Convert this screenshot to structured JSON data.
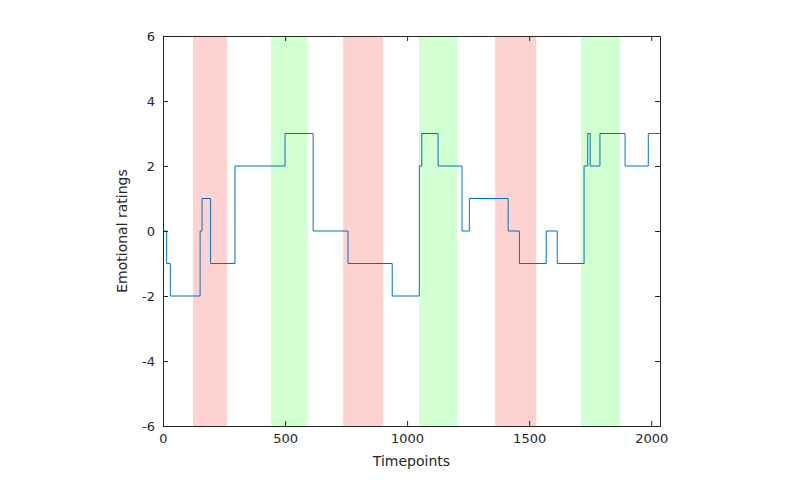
{
  "chart_data": {
    "type": "line",
    "line_style": "step",
    "color": "#0072bd",
    "x_label": "Timepoints",
    "y_label": "Emotional ratings",
    "x": [
      0,
      15,
      30,
      152,
      160,
      195,
      295,
      500,
      615,
      758,
      939,
      1050,
      1060,
      1127,
      1225,
      1255,
      1414,
      1460,
      1570,
      1615,
      1725,
      1740,
      1750,
      1790,
      1893,
      1988,
      2036
    ],
    "values": [
      0,
      -1,
      -2,
      0,
      1,
      -1,
      2,
      3,
      0,
      -1,
      -2,
      2,
      3,
      2,
      0,
      1,
      0,
      -1,
      0,
      -1,
      2,
      3,
      2,
      3,
      2,
      3,
      3
    ],
    "xlim": [
      0,
      2036
    ],
    "ylim": [
      -6,
      6
    ],
    "xticks": [
      0,
      500,
      1000,
      1500,
      2000
    ],
    "yticks": [
      -6,
      -4,
      -2,
      0,
      2,
      4,
      6
    ],
    "shaded_regions": [
      {
        "x": [
          123,
          262
        ],
        "color": "#ffd2d2"
      },
      {
        "x": [
          443,
          594
        ],
        "color": "#d2ffd2"
      },
      {
        "x": [
          738,
          902
        ],
        "color": "#ffd2d2"
      },
      {
        "x": [
          1049,
          1205
        ],
        "color": "#d2ffd2"
      },
      {
        "x": [
          1361,
          1529
        ],
        "color": "#ffd2d2"
      },
      {
        "x": [
          1713,
          1873
        ],
        "color": "#d2ffd2"
      }
    ]
  }
}
